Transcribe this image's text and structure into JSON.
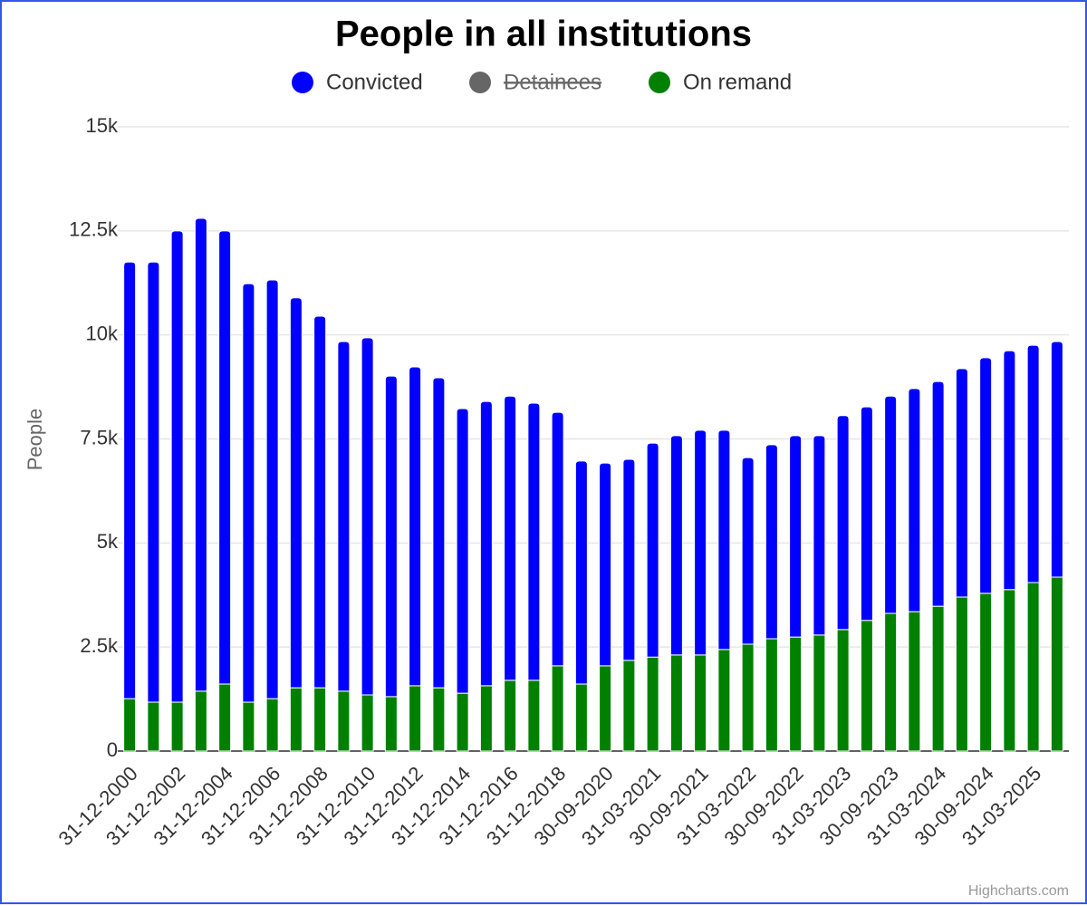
{
  "chart_data": {
    "type": "bar",
    "stacked": true,
    "title": "People in all institutions",
    "y_axis_label": "People",
    "credits": "Highcharts.com",
    "categories": [
      "31-12-2000",
      null,
      "31-12-2002",
      null,
      "31-12-2004",
      null,
      "31-12-2006",
      null,
      "31-12-2008",
      null,
      "31-12-2010",
      null,
      "31-12-2012",
      null,
      "31-12-2014",
      null,
      "31-12-2016",
      null,
      "31-12-2018",
      null,
      "30-09-2020",
      null,
      "31-03-2021",
      null,
      "30-09-2021",
      null,
      "31-03-2022",
      null,
      "30-09-2022",
      null,
      "31-03-2023",
      null,
      "30-09-2023",
      null,
      "31-03-2024",
      null,
      "30-09-2024",
      null,
      "31-03-2025",
      null
    ],
    "series": [
      {
        "name": "Convicted",
        "color": "#0000ff",
        "visible": true,
        "values": [
          10490,
          10575,
          11325,
          11360,
          10890,
          10055,
          10060,
          9370,
          8930,
          8400,
          8580,
          7700,
          7660,
          7450,
          6840,
          6830,
          6830,
          6660,
          6090,
          5360,
          4870,
          4830,
          5140,
          5270,
          5400,
          5270,
          4480,
          4660,
          4840,
          4790,
          5140,
          5130,
          5220,
          5360,
          5400,
          5490,
          5660,
          5740,
          5700,
          5660
        ]
      },
      {
        "name": "Detainees",
        "color": "#666666",
        "visible": false,
        "values": [
          null,
          null,
          null,
          null,
          null,
          null,
          null,
          null,
          null,
          null,
          null,
          null,
          null,
          null,
          null,
          null,
          null,
          null,
          null,
          null,
          null,
          null,
          null,
          null,
          null,
          null,
          null,
          null,
          null,
          null,
          null,
          null,
          null,
          null,
          null,
          null,
          null,
          null,
          null,
          null
        ]
      },
      {
        "name": "On remand",
        "color": "#008000",
        "visible": true,
        "values": [
          1260,
          1175,
          1175,
          1440,
          1610,
          1175,
          1260,
          1520,
          1520,
          1440,
          1350,
          1310,
          1570,
          1520,
          1390,
          1570,
          1700,
          1700,
          2050,
          1610,
          2050,
          2180,
          2260,
          2310,
          2310,
          2440,
          2570,
          2700,
          2740,
          2790,
          2920,
          3140,
          3310,
          3350,
          3480,
          3700,
          3790,
          3880,
          4050,
          4180
        ]
      }
    ],
    "ylim": [
      0,
      15000
    ],
    "yticks": [
      0,
      {
        "value": 2500,
        "label": "2.5k"
      },
      {
        "value": 5000,
        "label": "5k"
      },
      {
        "value": 7500,
        "label": "7.5k"
      },
      {
        "value": 10000,
        "label": "10k"
      },
      {
        "value": 12500,
        "label": "12.5k"
      },
      {
        "value": 15000,
        "label": "15k"
      }
    ],
    "grid": true,
    "legend": "top"
  }
}
